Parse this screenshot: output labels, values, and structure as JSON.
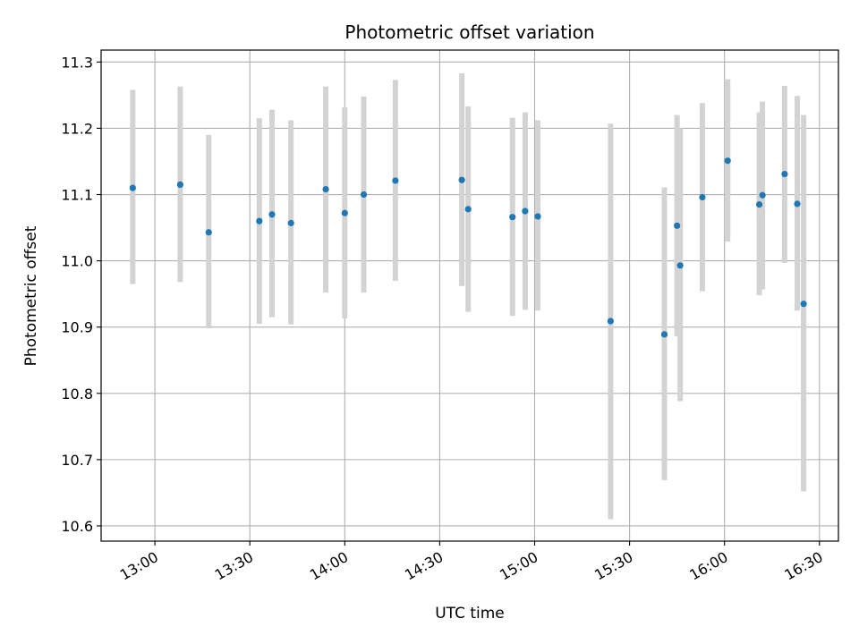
{
  "chart_data": {
    "type": "scatter",
    "title": "Photometric offset variation",
    "xlabel": "UTC time",
    "ylabel": "Photometric offset",
    "x_axis": {
      "kind": "time",
      "range": [
        "12:43",
        "16:36"
      ],
      "ticks": [
        "13:00",
        "13:30",
        "14:00",
        "14:30",
        "15:00",
        "15:30",
        "16:00",
        "16:30"
      ]
    },
    "y_axis": {
      "range": [
        10.577,
        11.318
      ],
      "ticks": [
        "10.6",
        "10.7",
        "10.8",
        "10.9",
        "11.0",
        "11.1",
        "11.2",
        "11.3"
      ]
    },
    "grid": true,
    "marker_color": "#1f77b4",
    "errorbar_color": "#d3d3d3",
    "points": [
      {
        "time": "12:53",
        "y": 11.11,
        "low": 10.965,
        "high": 11.258
      },
      {
        "time": "13:08",
        "y": 11.115,
        "low": 10.968,
        "high": 11.263
      },
      {
        "time": "13:17",
        "y": 11.043,
        "low": 10.898,
        "high": 11.19
      },
      {
        "time": "13:33",
        "y": 11.06,
        "low": 10.905,
        "high": 11.215
      },
      {
        "time": "13:37",
        "y": 11.07,
        "low": 10.915,
        "high": 11.228
      },
      {
        "time": "13:43",
        "y": 11.057,
        "low": 10.904,
        "high": 11.212
      },
      {
        "time": "13:54",
        "y": 11.108,
        "low": 10.952,
        "high": 11.263
      },
      {
        "time": "14:00",
        "y": 11.072,
        "low": 10.913,
        "high": 11.232
      },
      {
        "time": "14:06",
        "y": 11.1,
        "low": 10.952,
        "high": 11.248
      },
      {
        "time": "14:16",
        "y": 11.121,
        "low": 10.97,
        "high": 11.273
      },
      {
        "time": "14:37",
        "y": 11.122,
        "low": 10.962,
        "high": 11.283
      },
      {
        "time": "14:39",
        "y": 11.078,
        "low": 10.923,
        "high": 11.233
      },
      {
        "time": "14:53",
        "y": 11.066,
        "low": 10.917,
        "high": 11.216
      },
      {
        "time": "14:57",
        "y": 11.075,
        "low": 10.926,
        "high": 11.224
      },
      {
        "time": "15:01",
        "y": 11.067,
        "low": 10.925,
        "high": 11.212
      },
      {
        "time": "15:24",
        "y": 10.909,
        "low": 10.61,
        "high": 11.207
      },
      {
        "time": "15:41",
        "y": 10.889,
        "low": 10.669,
        "high": 11.111
      },
      {
        "time": "15:45",
        "y": 11.053,
        "low": 10.886,
        "high": 11.22
      },
      {
        "time": "15:46",
        "y": 10.993,
        "low": 10.788,
        "high": 11.2
      },
      {
        "time": "15:53",
        "y": 11.096,
        "low": 10.954,
        "high": 11.238
      },
      {
        "time": "16:01",
        "y": 11.151,
        "low": 11.029,
        "high": 11.274
      },
      {
        "time": "16:11",
        "y": 11.085,
        "low": 10.948,
        "high": 11.224
      },
      {
        "time": "16:12",
        "y": 11.099,
        "low": 10.957,
        "high": 11.24
      },
      {
        "time": "16:19",
        "y": 11.131,
        "low": 10.997,
        "high": 11.264
      },
      {
        "time": "16:23",
        "y": 11.086,
        "low": 10.925,
        "high": 11.249
      },
      {
        "time": "16:25",
        "y": 10.935,
        "low": 10.652,
        "high": 11.22
      }
    ]
  }
}
